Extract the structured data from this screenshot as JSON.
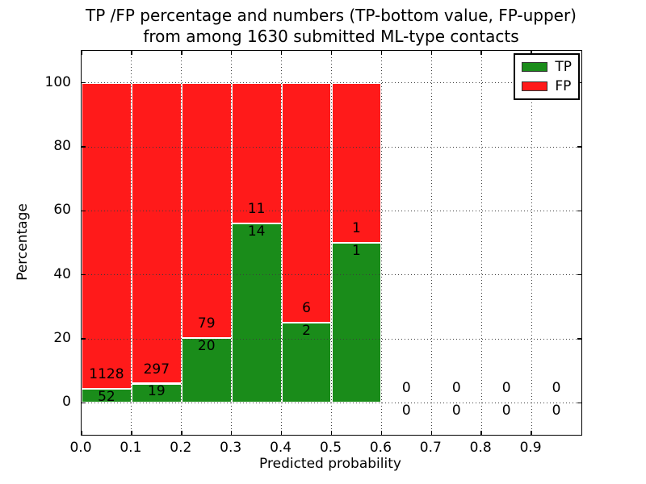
{
  "chart_data": {
    "type": "bar",
    "stacked": true,
    "normalized_to": "percentage",
    "title": "TP /FP percentage and numbers (TP-bottom value, FP-upper)\nfrom among 1630 submitted ML-type contacts",
    "title_line1": "TP /FP percentage and numbers (TP-bottom value, FP-upper)",
    "title_line2": "from among 1630 submitted ML-type contacts",
    "xlabel": "Predicted probability",
    "ylabel": "Percentage",
    "total_contacts": 1630,
    "xlim": [
      0.0,
      1.0
    ],
    "ylim": [
      -10,
      110
    ],
    "xtick_labels": [
      "0.0",
      "0.1",
      "0.2",
      "0.3",
      "0.4",
      "0.5",
      "0.6",
      "0.7",
      "0.8",
      "0.9"
    ],
    "ytick_labels": [
      "0",
      "20",
      "40",
      "60",
      "80",
      "100"
    ],
    "grid": "dotted",
    "legend_position": "upper right",
    "bin_edges": [
      0.0,
      0.1,
      0.2,
      0.3,
      0.4,
      0.5,
      0.6,
      0.7,
      0.8,
      0.9,
      1.0
    ],
    "series": [
      {
        "name": "TP",
        "color": "#1a8c1a",
        "counts": [
          52,
          19,
          20,
          14,
          2,
          1,
          0,
          0,
          0,
          0
        ]
      },
      {
        "name": "FP",
        "color": "#ff1a1a",
        "counts": [
          1128,
          297,
          79,
          11,
          6,
          1,
          0,
          0,
          0,
          0
        ]
      }
    ],
    "tp_percent_by_bin": [
      4.41,
      6.01,
      20.2,
      56.0,
      25.0,
      50.0,
      0,
      0,
      0,
      0
    ],
    "legend": {
      "entries": [
        {
          "label": "TP",
          "color": "#1a8c1a"
        },
        {
          "label": "FP",
          "color": "#ff1a1a"
        }
      ]
    }
  },
  "colors": {
    "tp": "#1a8c1a",
    "fp": "#ff1a1a",
    "grid": "#3c3c3c",
    "text": "#000000",
    "background": "#ffffff"
  }
}
